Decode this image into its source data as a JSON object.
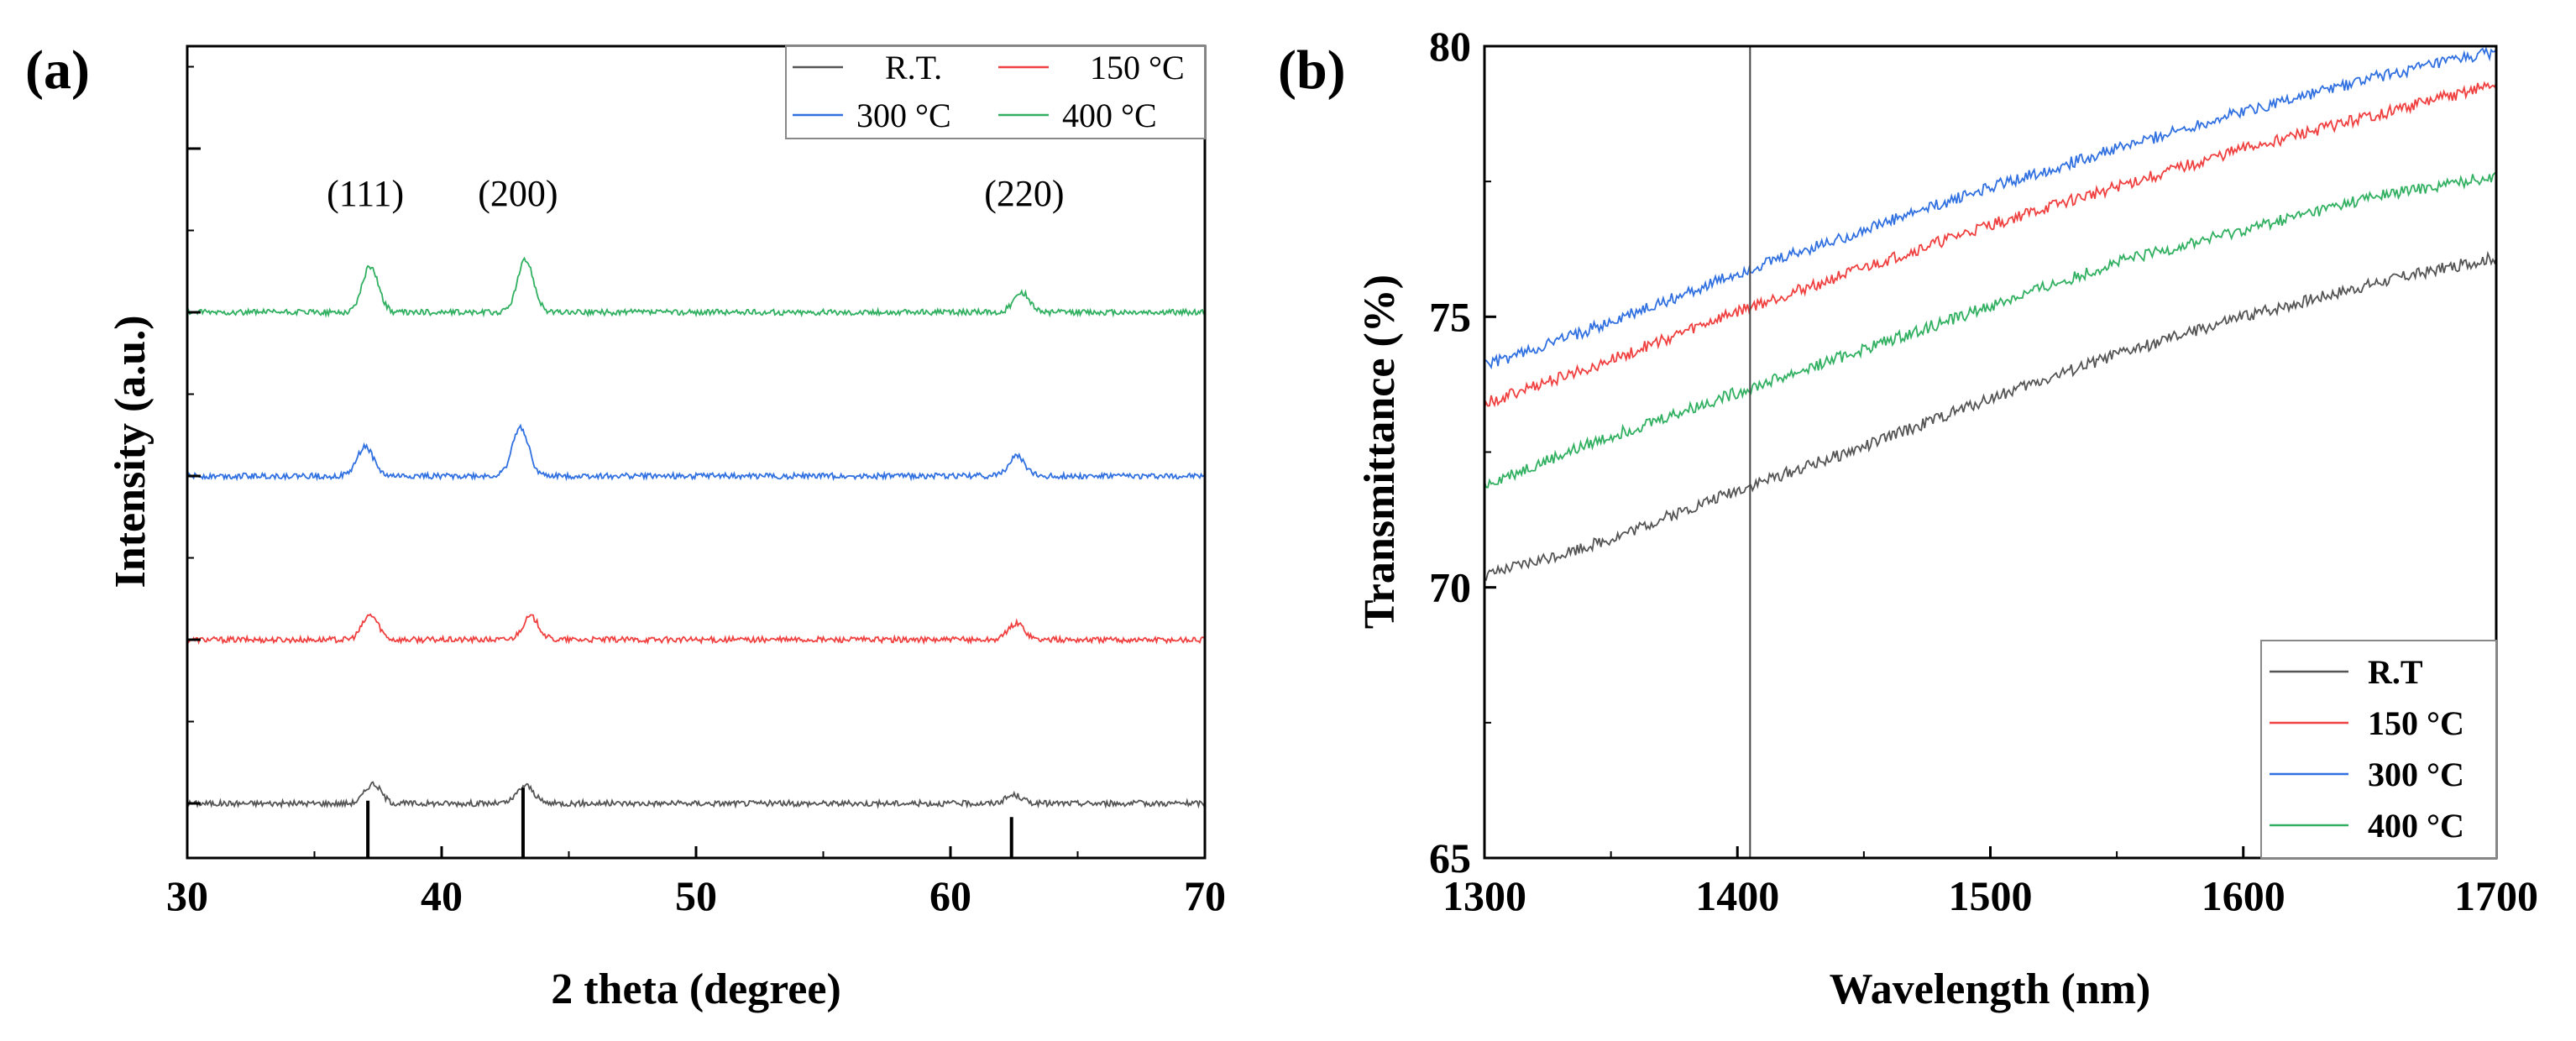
{
  "chart_data": [
    {
      "panel": "(a)",
      "type": "line",
      "title": "",
      "xlabel": "2 theta (degree)",
      "ylabel": "Intensity (a.u.)",
      "xlim": [
        30,
        70
      ],
      "xticks": [
        30,
        40,
        50,
        60,
        70
      ],
      "series": [
        {
          "name": "R.T.",
          "color": "#555555",
          "offset": 0,
          "noise": 0.35,
          "peaks": [
            {
              "x": 37.3,
              "h": 1.2,
              "w": 0.45
            },
            {
              "x": 43.3,
              "h": 1.1,
              "w": 0.45
            },
            {
              "x": 62.5,
              "h": 0.5,
              "w": 0.45
            }
          ]
        },
        {
          "name": "150 °C",
          "color": "#f04040",
          "offset": 10,
          "noise": 0.35,
          "peaks": [
            {
              "x": 37.2,
              "h": 1.5,
              "w": 0.45
            },
            {
              "x": 43.5,
              "h": 1.4,
              "w": 0.45
            },
            {
              "x": 62.6,
              "h": 1.0,
              "w": 0.45
            }
          ]
        },
        {
          "name": "300 °C",
          "color": "#3070e0",
          "offset": 20,
          "noise": 0.35,
          "peaks": [
            {
              "x": 37.0,
              "h": 1.8,
              "w": 0.45
            },
            {
              "x": 43.1,
              "h": 3.0,
              "w": 0.45
            },
            {
              "x": 62.6,
              "h": 1.2,
              "w": 0.45
            }
          ]
        },
        {
          "name": "400 °C",
          "color": "#30b060",
          "offset": 30,
          "noise": 0.35,
          "peaks": [
            {
              "x": 37.2,
              "h": 2.8,
              "w": 0.45
            },
            {
              "x": 43.3,
              "h": 3.2,
              "w": 0.45
            },
            {
              "x": 62.8,
              "h": 1.2,
              "w": 0.45
            }
          ]
        }
      ],
      "reference_lines": [
        {
          "x": 37.1,
          "height": 3.5
        },
        {
          "x": 43.2,
          "height": 4.3
        },
        {
          "x": 62.4,
          "height": 2.5
        }
      ],
      "peak_labels": [
        {
          "x": 37.0,
          "text": "(111)"
        },
        {
          "x": 43.0,
          "text": "(200)"
        },
        {
          "x": 62.9,
          "text": "(220)"
        }
      ],
      "legend_position": "top-right"
    },
    {
      "panel": "(b)",
      "type": "line",
      "title": "",
      "xlabel": "Wavelength (nm)",
      "ylabel": "Transmittance (%)",
      "xlim": [
        1300,
        1700
      ],
      "ylim": [
        65,
        80
      ],
      "xticks": [
        1300,
        1400,
        1500,
        1600,
        1700
      ],
      "yticks": [
        65,
        70,
        75,
        80
      ],
      "vline_x": 1405,
      "series": [
        {
          "name": "R.T",
          "color": "#555555",
          "points": [
            [
              1300,
              70.2
            ],
            [
              1350,
              70.9
            ],
            [
              1400,
              71.8
            ],
            [
              1450,
              72.6
            ],
            [
              1500,
              73.5
            ],
            [
              1550,
              74.3
            ],
            [
              1600,
              75.0
            ],
            [
              1650,
              75.6
            ],
            [
              1700,
              76.1
            ]
          ]
        },
        {
          "name": "150 °C",
          "color": "#f04040",
          "points": [
            [
              1300,
              73.4
            ],
            [
              1350,
              74.2
            ],
            [
              1400,
              75.1
            ],
            [
              1450,
              75.9
            ],
            [
              1500,
              76.7
            ],
            [
              1550,
              77.4
            ],
            [
              1600,
              78.1
            ],
            [
              1650,
              78.7
            ],
            [
              1700,
              79.3
            ]
          ]
        },
        {
          "name": "300 °C",
          "color": "#3070e0",
          "points": [
            [
              1300,
              74.1
            ],
            [
              1350,
              74.9
            ],
            [
              1400,
              75.8
            ],
            [
              1450,
              76.6
            ],
            [
              1500,
              77.4
            ],
            [
              1550,
              78.1
            ],
            [
              1600,
              78.8
            ],
            [
              1650,
              79.4
            ],
            [
              1700,
              79.9
            ]
          ]
        },
        {
          "name": "400 °C",
          "color": "#30b060",
          "points": [
            [
              1300,
              71.9
            ],
            [
              1350,
              72.8
            ],
            [
              1400,
              73.6
            ],
            [
              1450,
              74.4
            ],
            [
              1500,
              75.2
            ],
            [
              1550,
              76.0
            ],
            [
              1600,
              76.6
            ],
            [
              1650,
              77.2
            ],
            [
              1700,
              77.6
            ]
          ]
        }
      ],
      "legend_position": "bottom-right"
    }
  ]
}
